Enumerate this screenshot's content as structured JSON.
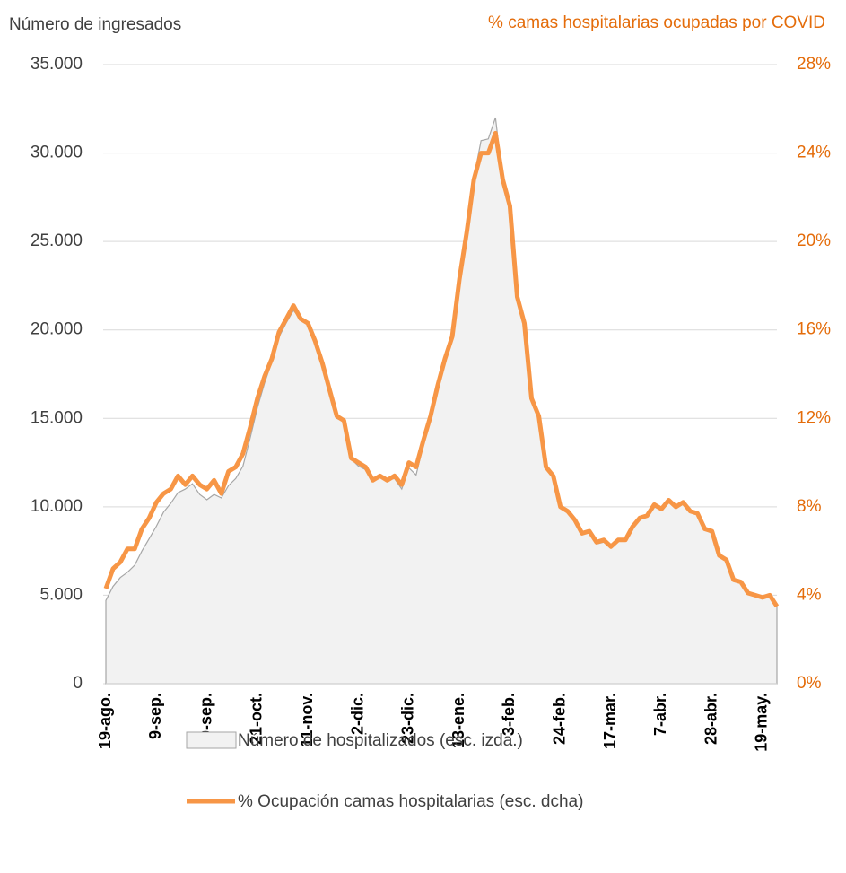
{
  "chart_data": {
    "type": "area-line",
    "y_title": "Número de ingresados",
    "y2_title": "% camas hospitalarias ocupadas por COVID",
    "categories": [
      "19-ago.",
      null,
      null,
      null,
      null,
      null,
      null,
      "9-sep.",
      null,
      null,
      null,
      null,
      null,
      null,
      "30-sep.",
      null,
      null,
      null,
      null,
      null,
      null,
      "21-oct.",
      null,
      null,
      null,
      null,
      null,
      null,
      "11-nov.",
      null,
      null,
      null,
      null,
      null,
      null,
      "2-dic.",
      null,
      null,
      null,
      null,
      null,
      null,
      "23-dic.",
      null,
      null,
      null,
      null,
      null,
      null,
      "13-ene.",
      null,
      null,
      null,
      null,
      null,
      null,
      "3-feb.",
      null,
      null,
      null,
      null,
      null,
      null,
      "24-feb.",
      null,
      null,
      null,
      null,
      null,
      null,
      "17-mar.",
      null,
      null,
      null,
      null,
      null,
      null,
      "7-abr.",
      null,
      null,
      null,
      null,
      null,
      null,
      "28-abr.",
      null,
      null,
      null,
      null,
      null,
      null,
      "19-may.",
      null,
      null
    ],
    "series": [
      {
        "name": "Número de hospitalizados (esc. izda.)",
        "color": "#f2f2f2",
        "stroke": "#a6a6a6",
        "axis": "y",
        "values": [
          4700,
          5500,
          6000,
          6300,
          6700,
          7500,
          8200,
          8900,
          9700,
          10200,
          10800,
          11000,
          11300,
          10700,
          10400,
          10700,
          10500,
          11200,
          11600,
          12300,
          13900,
          15600,
          17000,
          18200,
          19600,
          20400,
          21100,
          20600,
          20300,
          19300,
          18100,
          16500,
          15000,
          14800,
          12700,
          12300,
          12100,
          11600,
          11800,
          11500,
          11600,
          11000,
          12200,
          11800,
          13500,
          15000,
          16800,
          18400,
          19700,
          23000,
          25700,
          28600,
          30700,
          30800,
          32000,
          28500,
          27000,
          22000,
          20500,
          16000,
          15000,
          12200,
          11800,
          10000,
          9800,
          9300,
          8500,
          8600,
          7900,
          8000,
          7700,
          8100,
          8100,
          8800,
          9300,
          9500,
          10000,
          9800,
          10300,
          9900,
          10200,
          9700,
          9600,
          8700,
          8500,
          7200,
          7000,
          5900,
          5700,
          5100,
          5000,
          4900,
          4900,
          4400
        ]
      },
      {
        "name": "% Ocupación camas hospitalarias (esc. dcha)",
        "color": "#f79646",
        "axis": "y2",
        "values": [
          4.3,
          5.2,
          5.5,
          6.1,
          6.1,
          7.0,
          7.5,
          8.2,
          8.6,
          8.8,
          9.4,
          9.0,
          9.4,
          9.0,
          8.8,
          9.2,
          8.6,
          9.6,
          9.8,
          10.4,
          11.6,
          12.9,
          13.9,
          14.7,
          15.9,
          16.5,
          17.1,
          16.5,
          16.3,
          15.5,
          14.5,
          13.3,
          12.1,
          11.9,
          10.2,
          10.0,
          9.8,
          9.2,
          9.4,
          9.2,
          9.4,
          9.0,
          10.0,
          9.8,
          11.0,
          12.1,
          13.5,
          14.7,
          15.7,
          18.3,
          20.4,
          22.8,
          24.0,
          24.0,
          24.9,
          22.8,
          21.6,
          17.5,
          16.3,
          12.9,
          12.1,
          9.8,
          9.4,
          8.0,
          7.8,
          7.4,
          6.8,
          6.9,
          6.4,
          6.5,
          6.2,
          6.5,
          6.5,
          7.1,
          7.5,
          7.6,
          8.1,
          7.9,
          8.3,
          8.0,
          8.2,
          7.8,
          7.7,
          7.0,
          6.9,
          5.8,
          5.6,
          4.7,
          4.6,
          4.1,
          4.0,
          3.9,
          4.0,
          3.5
        ]
      }
    ],
    "ylim": [
      0,
      35000
    ],
    "yticks": [
      0,
      {
        "value": 5000,
        "label": "5.000"
      },
      {
        "value": 10000,
        "label": "10.000"
      },
      {
        "value": 15000,
        "label": "15.000"
      },
      {
        "value": 20000,
        "label": "20.000"
      },
      {
        "value": 25000,
        "label": "25.000"
      },
      {
        "value": 30000,
        "label": "30.000"
      },
      {
        "value": 35000,
        "label": "35.000"
      }
    ],
    "y2lim": [
      0,
      28
    ],
    "y2ticks": [
      {
        "value": 0,
        "label": "0%"
      },
      {
        "value": 4,
        "label": "4%"
      },
      {
        "value": 8,
        "label": "8%"
      },
      {
        "value": 12,
        "label": "12%"
      },
      {
        "value": 16,
        "label": "16%"
      },
      {
        "value": 20,
        "label": "20%"
      },
      {
        "value": 24,
        "label": "24%"
      },
      {
        "value": 28,
        "label": "28%"
      }
    ],
    "y2_color": "#e46c0a",
    "grid": true,
    "legend": "bottom"
  }
}
